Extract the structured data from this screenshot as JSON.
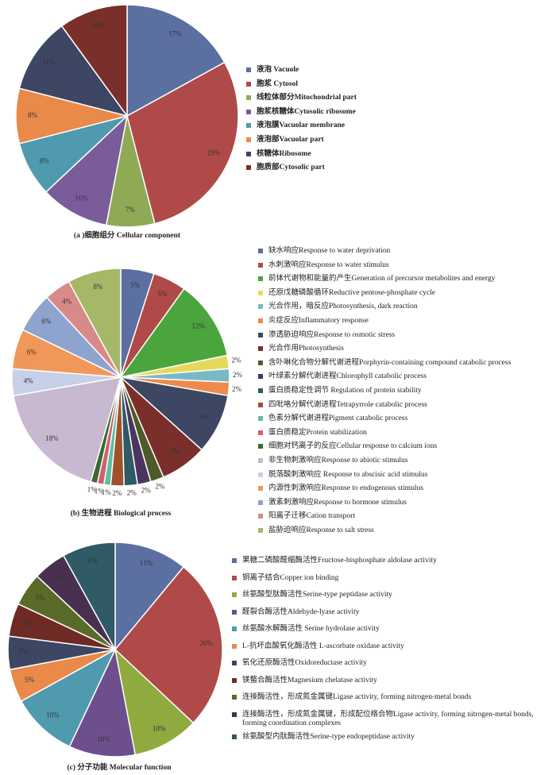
{
  "chart_data": [
    {
      "type": "pie",
      "title": "(a )细胞组分 Cellular component",
      "categories": [
        "液泡 Vacuole",
        "胞浆 Cytosol",
        "线粒体部分Mitochondrial part",
        "胞浆核糖体Cytosolic ribosome",
        "液泡膜Vacuolar membrane",
        "液泡部Vacuolar part",
        "核糖体Ribosome",
        "胞质部Cytosolic part"
      ],
      "values": [
        17,
        29,
        7,
        10,
        8,
        8,
        11,
        10
      ],
      "value_labels": [
        "17%",
        "29%",
        "7%",
        "10%",
        "8%",
        "8%",
        "11%",
        "10%"
      ],
      "colors": [
        "#5b6fa0",
        "#b04a48",
        "#8faa55",
        "#7a5c9a",
        "#4f9aae",
        "#e9894a",
        "#3d4663",
        "#7a2f2a"
      ]
    },
    {
      "type": "pie",
      "title": "(b) 生物进程 Biological process",
      "categories": [
        "缺水响应Response to water deprivation",
        "水刺激响应Response to water stimulus",
        "前体代谢物和能量的产生Generation of precursor metabolites and energy",
        "还原戊糖磷酸循环Reductive pentose-phosphate cycle",
        "光合作用，暗反应Photosynthesis, dark reaction",
        "炎症反应Inflammatory response",
        "渗透胁迫响应Response to osmotic stress",
        "光合作用Photosynthesis",
        "含卟啉化合物分解代谢进程Porphyrin-containing compound catabolic process",
        "叶绿素分解代谢进程Chlorophyll catabolic process",
        "蛋白质稳定性调节 Regulation of protein stability",
        "四吡咯分解代谢进程Tetrapyrrole catabolic process",
        "色素分解代谢进程Pigment catabolic process",
        "蛋白质稳定Protein stabilization",
        "细胞对钙离子的反应Cellular response to calcium ions",
        "非生物刺激响应Response to abiotic stimulus",
        "脱落酸刺激响应 Response to abscisic acid stimulus",
        "内源性刺激响应Response to endogenous stimulus",
        "激素刺激响应Response to hormone stimulus",
        "阳离子迁移Cation transport",
        "盐胁迫响应Response to salt stress"
      ],
      "values": [
        5,
        5,
        12,
        2,
        2,
        2,
        9,
        7,
        2,
        2,
        2,
        2,
        1,
        1,
        1,
        18,
        4,
        6,
        6,
        4,
        8
      ],
      "value_labels": [
        "5%",
        "5%",
        "12%",
        "2%",
        "2%",
        "2%",
        "9%",
        "7%",
        "2%",
        "2%",
        "2%",
        "2%",
        "1%",
        "1%",
        "1%",
        "18%",
        "4%",
        "6%",
        "6%",
        "4%",
        "8%"
      ],
      "colors": [
        "#5b6fa0",
        "#b04a48",
        "#4aa63c",
        "#e6d85a",
        "#7ab8c8",
        "#ee8a4a",
        "#3d4663",
        "#7a2f2a",
        "#4e5a28",
        "#4a3560",
        "#2f5a66",
        "#a0502a",
        "#5fc0a0",
        "#d06070",
        "#3a6a30",
        "#c8b8d0",
        "#c8d0e8",
        "#f0985a",
        "#8ea4cf",
        "#d88a88",
        "#a4b868"
      ]
    },
    {
      "type": "pie",
      "title": "(c) 分子功能 Molecular function",
      "categories": [
        "果糖二磷酸醛缩酶活性Fructose-bisphosphate aldolase activity",
        "铜离子结合Copper ion binding",
        "丝氨酸型肽酶活性Serine-type peptidase activity",
        "醛裂合酶活性Aldehyde-lyase activity",
        "丝氨酸水解酶活性 Serine hydrolase activity",
        "L-抗坏血酸氧化酶活性 L-ascorbate oxidase activity",
        "氧化还原酶活性Oxidoreductase activity",
        "镁螯合酶活性Magnesium chelatase activity",
        "连接酶活性，形成氮金属键Ligase activity, forming nitrogen-metal bonds",
        "连接酶活性，形成氮金属键，形成配位络合物Ligase activity, forming nitrogen-metal bonds, forming coordination complexes",
        "丝氨酸型内肽酶活性Serine-type endopeptidase activity"
      ],
      "values": [
        11,
        26,
        10,
        10,
        10,
        5,
        5,
        5,
        5,
        5,
        8
      ],
      "value_labels": [
        "11%",
        "26%",
        "10%",
        "10%",
        "10%",
        "5%",
        "5%",
        "5%",
        "5%",
        "5%",
        "8%"
      ],
      "colors": [
        "#5b6fa0",
        "#b04a48",
        "#8faa3f",
        "#6e4f8e",
        "#4f9aae",
        "#e9894a",
        "#3d4663",
        "#6e2a24",
        "#5a6a28",
        "#4a3050",
        "#2f5a66"
      ]
    }
  ]
}
